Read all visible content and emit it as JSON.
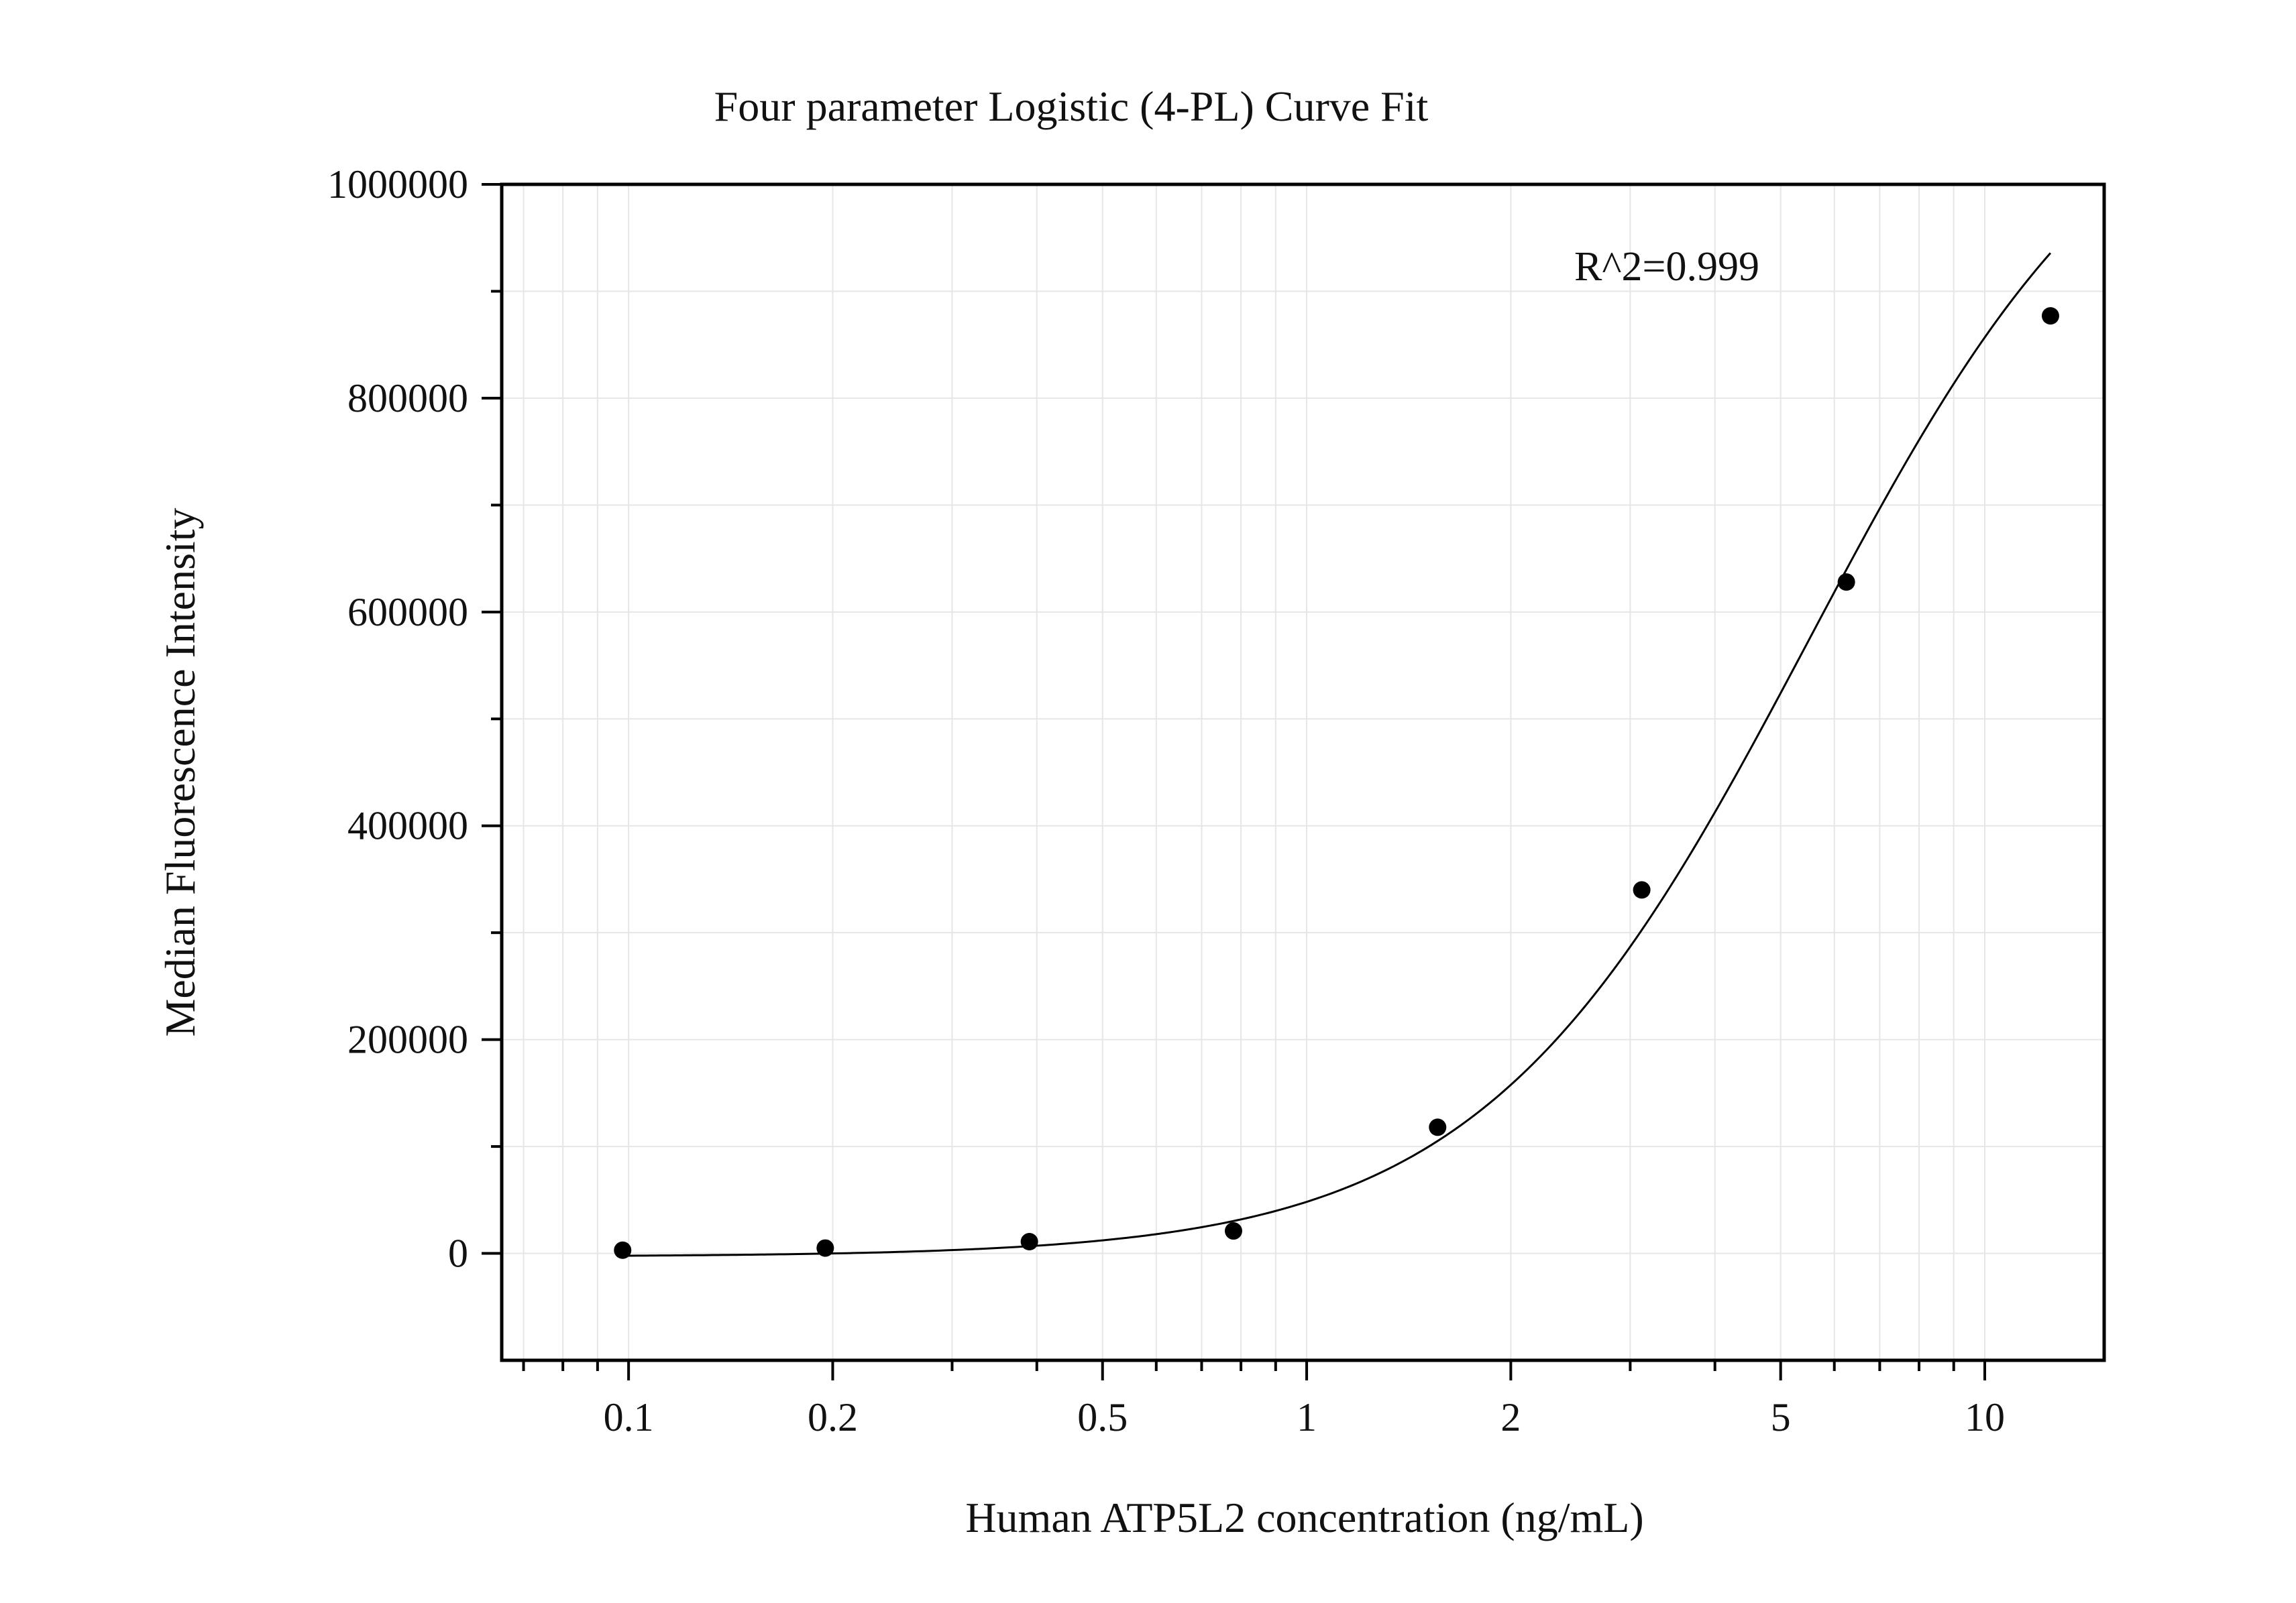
{
  "chart_data": {
    "type": "scatter",
    "title": "Four parameter Logistic (4-PL) Curve Fit",
    "xlabel": "Human ATP5L2 concentration (ng/mL)",
    "ylabel": "Median Fluorescence Intensity",
    "x_scale": "log",
    "xlim": [
      0.065,
      15
    ],
    "ylim": [
      -100000,
      1000000
    ],
    "x_ticks": [
      {
        "value": 0.1,
        "label": "0.1"
      },
      {
        "value": 0.2,
        "label": "0.2"
      },
      {
        "value": 0.5,
        "label": "0.5"
      },
      {
        "value": 1,
        "label": "1"
      },
      {
        "value": 2,
        "label": "2"
      },
      {
        "value": 5,
        "label": "5"
      },
      {
        "value": 10,
        "label": "10"
      }
    ],
    "y_ticks": [
      {
        "value": 0,
        "label": "0"
      },
      {
        "value": 200000,
        "label": "200000"
      },
      {
        "value": 400000,
        "label": "400000"
      },
      {
        "value": 600000,
        "label": "600000"
      },
      {
        "value": 800000,
        "label": "800000"
      },
      {
        "value": 1000000,
        "label": "1000000"
      }
    ],
    "grid": true,
    "series": [
      {
        "points": [
          {
            "x": 0.098,
            "y": 3000
          },
          {
            "x": 0.195,
            "y": 5000
          },
          {
            "x": 0.39,
            "y": 11000
          },
          {
            "x": 0.78,
            "y": 21000
          },
          {
            "x": 1.56,
            "y": 118000
          },
          {
            "x": 3.12,
            "y": 340000
          },
          {
            "x": 6.25,
            "y": 628000
          },
          {
            "x": 12.5,
            "y": 877000
          }
        ]
      }
    ],
    "fit_curve": {
      "model": "4PL",
      "bottom": -3000,
      "top": 1150000,
      "ec50": 5.5,
      "hill": 1.8,
      "x_range": [
        0.098,
        12.5
      ]
    },
    "annotations": [
      {
        "text": "R^2=0.999"
      }
    ],
    "colors": {
      "points": "#000000",
      "curve": "#000000",
      "grid": "#e6e6e6",
      "axes": "#000000"
    }
  }
}
